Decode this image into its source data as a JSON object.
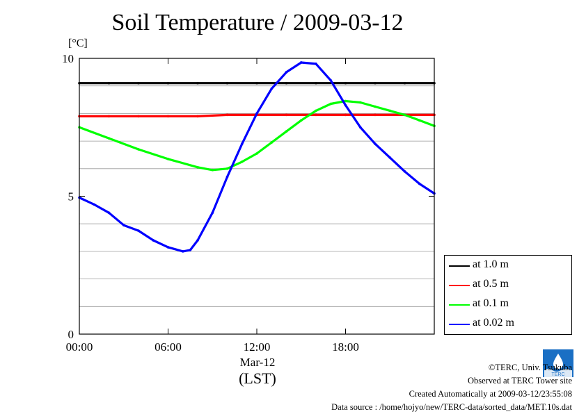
{
  "title": "Soil Temperature / 2009-03-12",
  "unit": "[°C]",
  "axis": {
    "date": "Mar-12",
    "xlabel": "(LST)"
  },
  "legend": [
    {
      "label": "at 1.0 m",
      "color": "#000000"
    },
    {
      "label": "at 0.5 m",
      "color": "#ff0000"
    },
    {
      "label": "at 0.1 m",
      "color": "#00ff00"
    },
    {
      "label": "at 0.02 m",
      "color": "#0000ff"
    }
  ],
  "credits": {
    "copyright": "©TERC, Univ. Tsukuba",
    "site": "Observed at TERC Tower site",
    "created": "Created Automatically at 2009-03-12/23:55:08",
    "source": "Data source : /home/hojyo/new/TERC-data/sorted_data/MET.10s.dat"
  },
  "logo_text": "TERC",
  "chart_data": {
    "type": "line",
    "title": "Soil Temperature / 2009-03-12",
    "ylabel": "[°C]",
    "xlabel": "(LST)",
    "xlim": [
      0,
      24
    ],
    "ylim": [
      0,
      10
    ],
    "x_ticks": [
      0,
      6,
      12,
      18
    ],
    "x_tick_labels": [
      "00:00",
      "06:00",
      "12:00",
      "18:00"
    ],
    "y_ticks": [
      0,
      5,
      10
    ],
    "y_tick_labels": [
      "0",
      "5",
      "10"
    ],
    "y_gridlines": [
      1,
      2,
      3,
      4,
      6,
      7,
      8,
      9
    ],
    "grid": true,
    "legend_position": "bottom-right",
    "series": [
      {
        "name": "at 1.0 m",
        "color": "#000000",
        "x": [
          0,
          2,
          4,
          6,
          8,
          10,
          12,
          14,
          16,
          18,
          20,
          22,
          24
        ],
        "y": [
          9.1,
          9.1,
          9.1,
          9.1,
          9.1,
          9.1,
          9.1,
          9.1,
          9.1,
          9.1,
          9.1,
          9.1,
          9.1
        ]
      },
      {
        "name": "at 0.5 m",
        "color": "#ff0000",
        "x": [
          0,
          2,
          4,
          6,
          8,
          10,
          12,
          14,
          16,
          18,
          20,
          22,
          24
        ],
        "y": [
          7.9,
          7.9,
          7.9,
          7.9,
          7.9,
          7.95,
          7.95,
          7.95,
          7.95,
          7.95,
          7.95,
          7.95,
          7.95
        ]
      },
      {
        "name": "at 0.1 m",
        "color": "#00ff00",
        "x": [
          0,
          2,
          4,
          6,
          8,
          9,
          10,
          11,
          12,
          13,
          14,
          15,
          16,
          17,
          18,
          19,
          20,
          21,
          22,
          23,
          24
        ],
        "y": [
          7.5,
          7.1,
          6.7,
          6.35,
          6.05,
          5.95,
          6.0,
          6.25,
          6.55,
          6.95,
          7.35,
          7.75,
          8.1,
          8.35,
          8.45,
          8.4,
          8.25,
          8.1,
          7.95,
          7.75,
          7.55
        ]
      },
      {
        "name": "at 0.02 m",
        "color": "#0000ff",
        "x": [
          0,
          1,
          2,
          3,
          4,
          5,
          6,
          7,
          7.5,
          8,
          9,
          10,
          11,
          12,
          13,
          14,
          15,
          16,
          17,
          18,
          19,
          20,
          21,
          22,
          23,
          24
        ],
        "y": [
          4.95,
          4.7,
          4.4,
          3.95,
          3.75,
          3.4,
          3.15,
          3.0,
          3.05,
          3.4,
          4.4,
          5.7,
          6.9,
          8.0,
          8.9,
          9.5,
          9.85,
          9.8,
          9.2,
          8.3,
          7.5,
          6.9,
          6.4,
          5.9,
          5.45,
          5.1
        ]
      }
    ]
  }
}
